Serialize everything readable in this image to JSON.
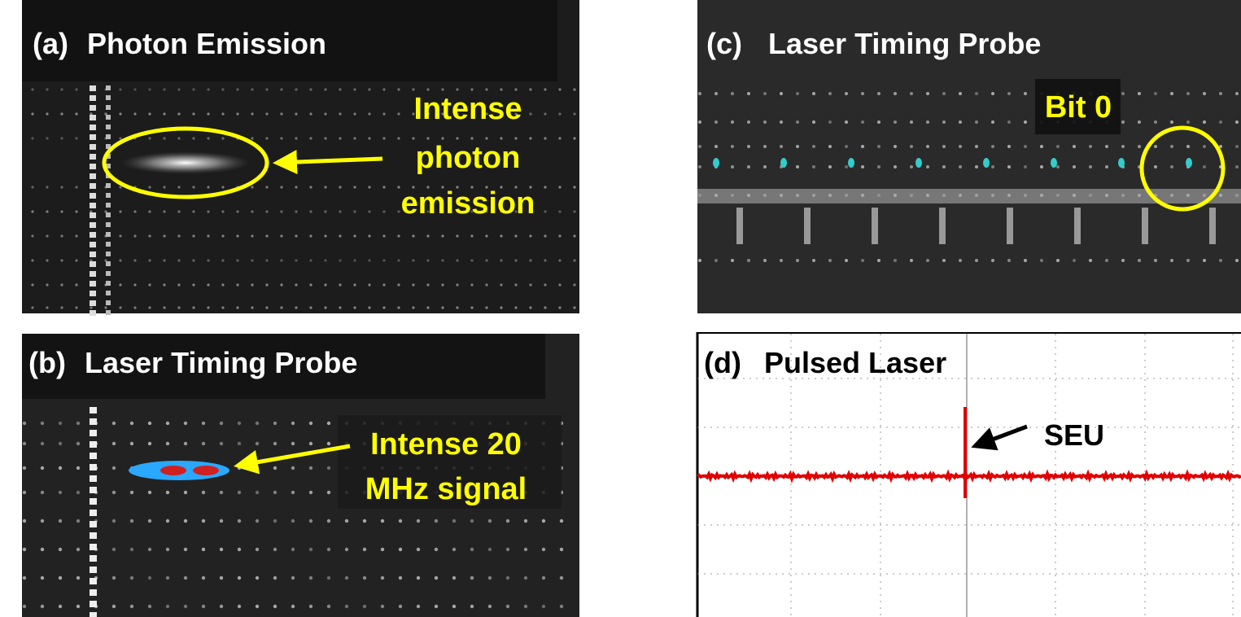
{
  "panels": [
    {
      "label": "(a)",
      "title": "Photon Emission",
      "annotation": [
        "Intense",
        "photon",
        "emission"
      ]
    },
    {
      "label": "(b)",
      "title": "Laser Timing Probe",
      "annotation": [
        "Intense 20",
        "MHz signal"
      ]
    },
    {
      "label": "(c)",
      "title": "Laser Timing Probe",
      "annotation": [
        "Bit 0"
      ]
    },
    {
      "label": "(d)",
      "title": "Pulsed Laser",
      "annotation": [
        "SEU"
      ]
    }
  ]
}
